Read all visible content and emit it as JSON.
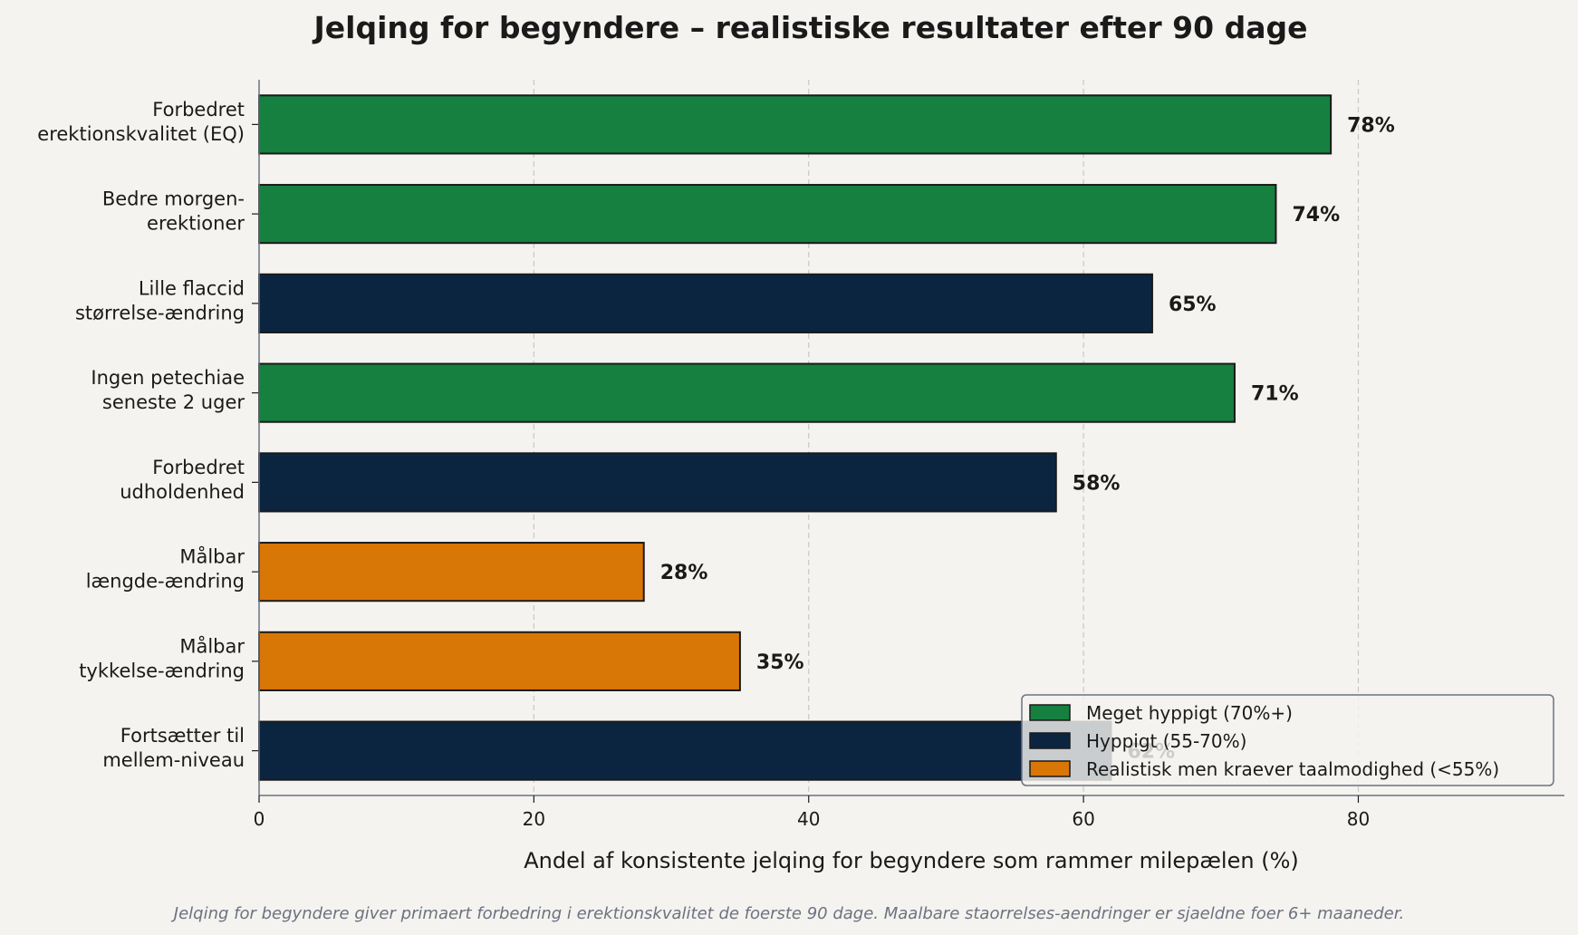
{
  "colors": {
    "background": "#f4f3ef",
    "very_common": "#168040",
    "common": "#0b2541",
    "patience": "#d97706",
    "text": "#1a1a1a",
    "grid": "#c8c8c8",
    "axis": "#6b7280",
    "caption": "#6b7280",
    "bar_edge": "#1a1a1a"
  },
  "chart_data": {
    "type": "bar",
    "orientation": "horizontal",
    "title": "Jelqing for begyndere – realistiske resultater efter 90 dage",
    "xlabel": "Andel af konsistente jelqing for begyndere som rammer milepælen (%)",
    "ylabel": "",
    "xlim": [
      0,
      95
    ],
    "xticks": [
      0,
      20,
      40,
      60,
      80
    ],
    "grid": "x-dashed",
    "legend_position": "lower-right",
    "categories": [
      [
        "Forbedret",
        "erektionskvalitet (EQ)"
      ],
      [
        "Bedre morgen-",
        "erektioner"
      ],
      [
        "Lille flaccid",
        "størrelse-ændring"
      ],
      [
        "Ingen petechiae",
        "seneste 2 uger"
      ],
      [
        "Forbedret",
        "udholdenhed"
      ],
      [
        "Målbar",
        "længde-ændring"
      ],
      [
        "Målbar",
        "tykkelse-ændring"
      ],
      [
        "Fortsætter til",
        "mellem-niveau"
      ]
    ],
    "values": [
      78,
      74,
      65,
      71,
      58,
      28,
      35,
      62
    ],
    "value_labels": [
      "78%",
      "74%",
      "65%",
      "71%",
      "58%",
      "28%",
      "35%",
      "62%"
    ],
    "groups": [
      "very_common",
      "very_common",
      "common",
      "very_common",
      "common",
      "patience",
      "patience",
      "common"
    ],
    "legend": [
      {
        "key": "very_common",
        "label": "Meget hyppigt (70%+)"
      },
      {
        "key": "common",
        "label": "Hyppigt (55-70%)"
      },
      {
        "key": "patience",
        "label": "Realistisk men kraever taalmodighed (<55%)"
      }
    ],
    "caption": "Jelqing for begyndere giver primaert forbedring i erektionskvalitet de foerste 90 dage. Maalbare staorrelses-aendringer er sjaeldne foer 6+ maaneder."
  }
}
